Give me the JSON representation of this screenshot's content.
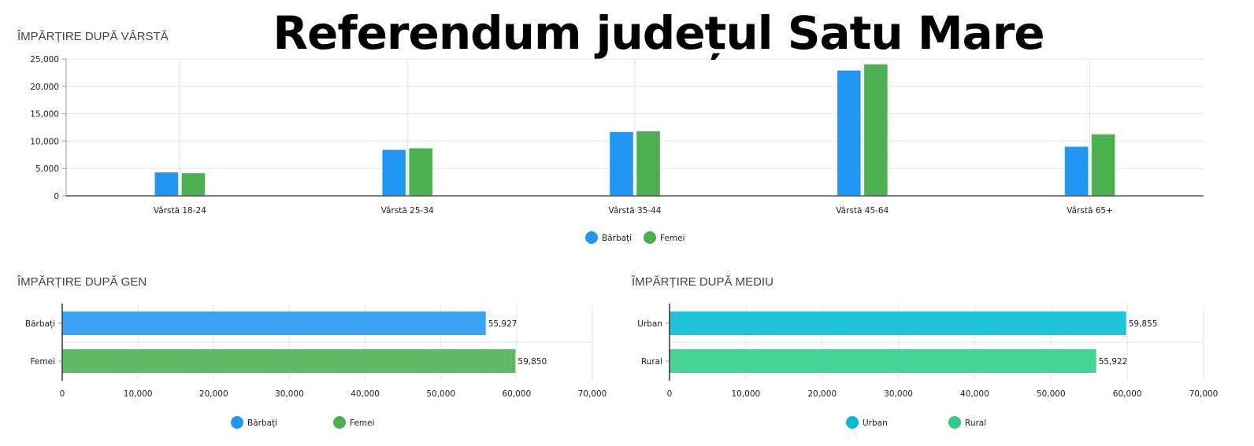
{
  "title": "Referendum județul Satu Mare",
  "chart_data": [
    {
      "type": "bar",
      "title": "ÎMPĂRȚIRE DUPĂ VÂRSTĂ",
      "categories": [
        "Vârstă 18-24",
        "Vârstă 25-34",
        "Vârstă 35-44",
        "Vârstă 45-64",
        "Vârstă 65+"
      ],
      "series": [
        {
          "name": "Bărbați",
          "color": "#2196f3",
          "values": [
            4310,
            8430,
            11700,
            22920,
            9000
          ]
        },
        {
          "name": "Femei",
          "color": "#4caf50",
          "values": [
            4170,
            8710,
            11840,
            24050,
            11270
          ]
        }
      ],
      "ylim": [
        0,
        25000
      ],
      "yticks": [
        "0",
        "5,000",
        "10,000",
        "15,000",
        "20,000",
        "25,000"
      ],
      "grid": true,
      "legend": "bottom"
    },
    {
      "type": "bar",
      "orientation": "horizontal",
      "title": "ÎMPĂRȚIRE DUPĂ GEN",
      "categories": [
        "Bărbați",
        "Femei"
      ],
      "values": [
        55927,
        59850
      ],
      "data_labels": [
        "55,927",
        "59,850"
      ],
      "colors": [
        "#2196f3",
        "#4caf50"
      ],
      "xlim": [
        0,
        70000
      ],
      "xticks": [
        "0",
        "10,000",
        "20,000",
        "30,000",
        "40,000",
        "50,000",
        "60,000",
        "70,000"
      ],
      "legend_entries": [
        "Bărbați",
        "Femei"
      ],
      "legend": "bottom"
    },
    {
      "type": "bar",
      "orientation": "horizontal",
      "title": "ÎMPĂRȚIRE DUPĂ MEDIU",
      "categories": [
        "Urban",
        "Rural"
      ],
      "values": [
        59855,
        55922
      ],
      "data_labels": [
        "59,855",
        "55,922"
      ],
      "colors": [
        "#00bcd4",
        "#2ecc87"
      ],
      "xlim": [
        0,
        70000
      ],
      "xticks": [
        "0",
        "10,000",
        "20,000",
        "30,000",
        "40,000",
        "50,000",
        "60,000",
        "70,000"
      ],
      "legend_entries": [
        "Urban",
        "Rural"
      ],
      "legend": "bottom"
    }
  ]
}
